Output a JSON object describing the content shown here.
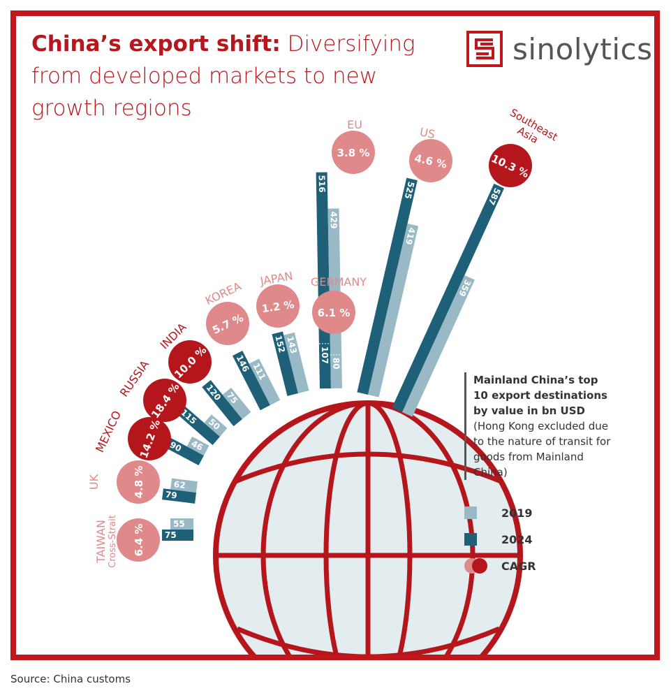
{
  "header": {
    "title_bold": "China’s export shift:",
    "title_rest": " Diversifying from developed markets to new growth regions",
    "logo_text": "sinolytics"
  },
  "legend": {
    "heading": "Mainland China’s top 10 export destinations by value in bn USD",
    "note": "(Hong Kong excluded due to the nature of transit for goods from Mainland China)",
    "items": [
      {
        "label": "2019",
        "color": "#9ab9c6"
      },
      {
        "label": "2024",
        "color": "#1f6079"
      },
      {
        "label": "CAGR",
        "color": "#b5161b"
      }
    ]
  },
  "source": "Source: China customs",
  "chart_data": {
    "type": "bar",
    "title": "China’s export shift: Diversifying from developed markets to new growth regions",
    "unit": "bn USD",
    "categories": [
      "TAIWAN",
      "UK",
      "MEXICO",
      "RUSSIA",
      "INDIA",
      "KOREA",
      "JAPAN",
      "GERMANY",
      "EU",
      "US",
      "Southeast Asia"
    ],
    "category_sublabels": {
      "TAIWAN": "Cross-Strait"
    },
    "series": [
      {
        "name": "2019",
        "color": "#9ab9c6",
        "values": [
          55,
          62,
          46,
          50,
          75,
          111,
          143,
          80,
          429,
          419,
          359
        ]
      },
      {
        "name": "2024",
        "color": "#1f6079",
        "values": [
          75,
          79,
          90,
          115,
          120,
          146,
          152,
          107,
          516,
          525,
          587
        ]
      }
    ],
    "cagr": [
      "6.4 %",
      "4.8 %",
      "14.2 %",
      "18.4 %",
      "10.0 %",
      "5.7 %",
      "1.2 %",
      "6.1 %",
      "3.8 %",
      "4.6 %",
      "10.3 %"
    ],
    "cagr_highlight": [
      false,
      false,
      true,
      true,
      true,
      false,
      false,
      false,
      false,
      false,
      true
    ],
    "colors": {
      "high_cagr": "#b5161b",
      "low_cagr": "#e0898b",
      "frame": "#c0161c"
    }
  }
}
